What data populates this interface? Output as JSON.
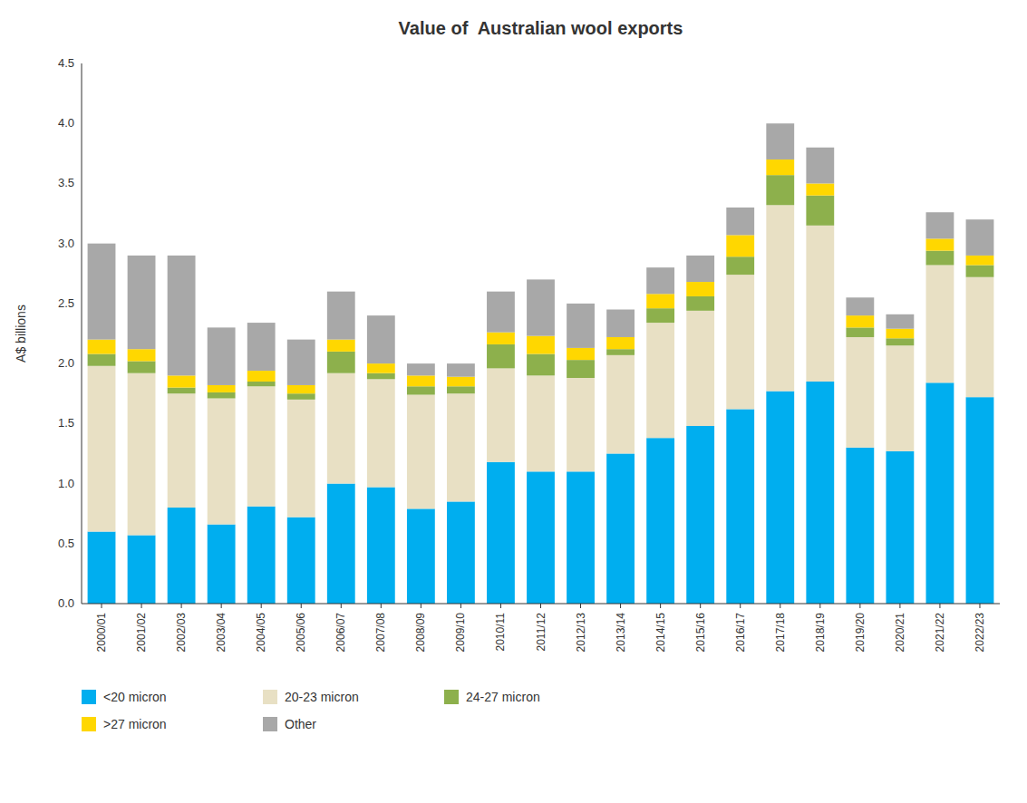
{
  "chart_data": {
    "type": "bar",
    "stacked": true,
    "title": "Value of  Australian wool exports",
    "ylabel": "A$ billions",
    "categories": [
      "2000/01",
      "2001/02",
      "2002/03",
      "2003/04",
      "2004/05",
      "2005/06",
      "2006/07",
      "2007/08",
      "2008/09",
      "2009/10",
      "2010/11",
      "2011/12",
      "2012/13",
      "2013/14",
      "2014/15",
      "2015/16",
      "2016/17",
      "2017/18",
      "2018/19",
      "2019/20",
      "2020/21",
      "2021/22",
      "2022/23"
    ],
    "series": [
      {
        "name": "<20 micron",
        "color": "#00AEEF",
        "values": [
          0.6,
          0.57,
          0.8,
          0.66,
          0.81,
          0.72,
          1.0,
          0.97,
          0.79,
          0.85,
          1.18,
          1.1,
          1.1,
          1.25,
          1.38,
          1.48,
          1.62,
          1.77,
          1.85,
          1.3,
          1.27,
          1.84,
          1.72
        ]
      },
      {
        "name": "20-23 micron",
        "color": "#E8E0C4",
        "values": [
          1.38,
          1.35,
          0.95,
          1.05,
          1.0,
          0.98,
          0.92,
          0.9,
          0.95,
          0.9,
          0.78,
          0.8,
          0.78,
          0.82,
          0.96,
          0.96,
          1.12,
          1.55,
          1.3,
          0.92,
          0.88,
          0.98,
          1.0
        ]
      },
      {
        "name": "24-27 micron",
        "color": "#8DB04C",
        "values": [
          0.1,
          0.1,
          0.05,
          0.05,
          0.04,
          0.05,
          0.18,
          0.05,
          0.07,
          0.06,
          0.2,
          0.18,
          0.15,
          0.05,
          0.12,
          0.12,
          0.15,
          0.25,
          0.25,
          0.08,
          0.06,
          0.12,
          0.1
        ]
      },
      {
        "name": ">27 micron",
        "color": "#FFD700",
        "values": [
          0.12,
          0.1,
          0.1,
          0.06,
          0.09,
          0.07,
          0.1,
          0.08,
          0.09,
          0.08,
          0.1,
          0.15,
          0.1,
          0.1,
          0.12,
          0.12,
          0.18,
          0.13,
          0.1,
          0.1,
          0.08,
          0.1,
          0.08
        ]
      },
      {
        "name": "Other",
        "color": "#A8A8A8",
        "values": [
          0.8,
          0.78,
          1.0,
          0.48,
          0.4,
          0.38,
          0.4,
          0.4,
          0.1,
          0.11,
          0.34,
          0.47,
          0.37,
          0.23,
          0.22,
          0.22,
          0.23,
          0.3,
          0.3,
          0.15,
          0.12,
          0.22,
          0.3
        ]
      }
    ],
    "ylim": [
      0,
      4.5
    ],
    "yticks": [
      {
        "value": 0,
        "label": "0.0"
      },
      0.5,
      {
        "value": 1,
        "label": "1.0"
      },
      1.5,
      {
        "value": 2,
        "label": "2.0"
      },
      2.5,
      {
        "value": 3,
        "label": "3.0"
      },
      3.5,
      {
        "value": 4,
        "label": "4.0"
      },
      4.5
    ],
    "grid": false,
    "legend": "bottom"
  }
}
